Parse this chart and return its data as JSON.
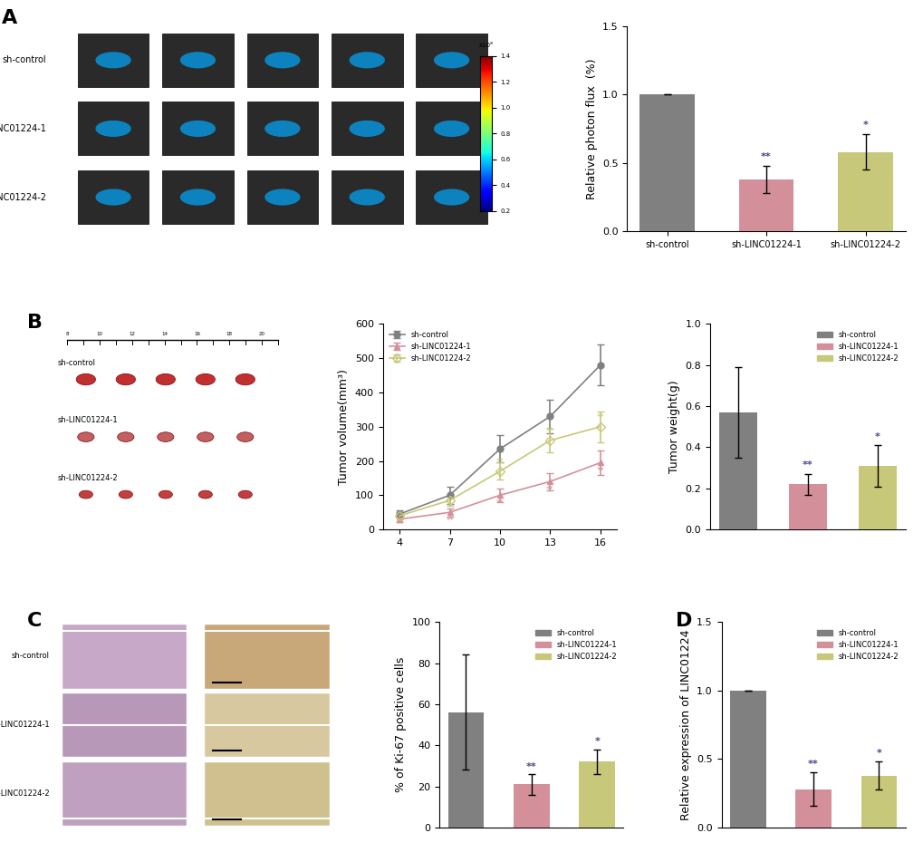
{
  "colors": {
    "sh_control": "#808080",
    "sh_linc1": "#d4909a",
    "sh_linc2": "#c8c87a"
  },
  "panel_A_bar": {
    "categories": [
      "sh-control",
      "sh-LINC01224-1",
      "sh-LINC01224-2"
    ],
    "values": [
      1.0,
      0.38,
      0.58
    ],
    "errors": [
      0.0,
      0.1,
      0.13
    ],
    "ylabel": "Relative photon flux  (%)",
    "ylim": [
      0,
      1.5
    ],
    "yticks": [
      0.0,
      0.5,
      1.0,
      1.5
    ],
    "sig_labels": [
      "",
      "**",
      "*"
    ]
  },
  "panel_B_line": {
    "x": [
      4,
      7,
      10,
      13,
      16
    ],
    "sh_control_y": [
      45,
      100,
      235,
      330,
      480
    ],
    "sh_control_err": [
      10,
      25,
      40,
      50,
      60
    ],
    "sh_linc1_y": [
      30,
      50,
      100,
      140,
      195
    ],
    "sh_linc1_err": [
      8,
      12,
      20,
      25,
      35
    ],
    "sh_linc2_y": [
      40,
      85,
      170,
      260,
      300
    ],
    "sh_linc2_err": [
      10,
      15,
      25,
      35,
      45
    ],
    "ylabel": "Tumor volume(mm³)",
    "ylim": [
      0,
      600
    ],
    "yticks": [
      0,
      100,
      200,
      300,
      400,
      500,
      600
    ],
    "xticks": [
      4,
      7,
      10,
      13,
      16
    ]
  },
  "panel_B_bar": {
    "categories": [
      "sh-control",
      "sh-LINC01224-1",
      "sh-LINC01224-2"
    ],
    "values": [
      0.57,
      0.22,
      0.31
    ],
    "errors": [
      0.22,
      0.05,
      0.1
    ],
    "ylabel": "Tumor weight(g)",
    "ylim": [
      0,
      1.0
    ],
    "yticks": [
      0.0,
      0.2,
      0.4,
      0.6,
      0.8,
      1.0
    ],
    "sig_labels": [
      "",
      "**",
      "*"
    ]
  },
  "panel_C_bar": {
    "categories": [
      "sh-control",
      "sh-LINC01224-1",
      "sh-LINC01224-2"
    ],
    "values": [
      56,
      21,
      32
    ],
    "errors": [
      28,
      5,
      6
    ],
    "ylabel": "% of Ki-67 positive cells",
    "ylim": [
      0,
      100
    ],
    "yticks": [
      0,
      20,
      40,
      60,
      80,
      100
    ],
    "sig_labels": [
      "",
      "**",
      "*"
    ]
  },
  "panel_D_bar": {
    "categories": [
      "sh-control",
      "sh-LINC01224-1",
      "sh-LINC01224-2"
    ],
    "values": [
      1.0,
      0.28,
      0.38
    ],
    "errors": [
      0.0,
      0.12,
      0.1
    ],
    "ylabel": "Relative expression of LINC01224",
    "ylim": [
      0,
      1.5
    ],
    "yticks": [
      0.0,
      0.5,
      1.0,
      1.5
    ],
    "sig_labels": [
      "",
      "**",
      "*"
    ]
  },
  "legend_labels": [
    "sh-control",
    "sh-LINC01224-1",
    "sh-LINC01224-2"
  ],
  "label_fontsize": 9,
  "tick_fontsize": 8,
  "panel_label_fontsize": 16
}
